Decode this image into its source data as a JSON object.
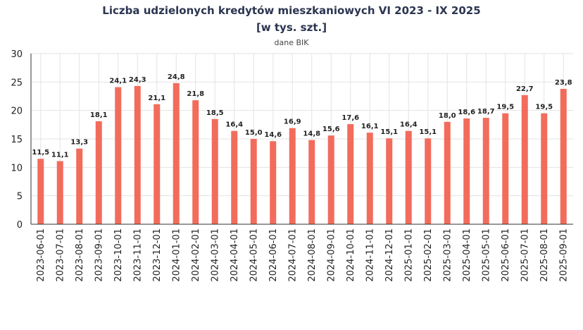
{
  "chart_title_line1": "Liczba udzielonych kredytów mieszkaniowych VI 2023 - IX 2025",
  "chart_title_line2": "[w tys. szt.]",
  "chart_subtitle": "dane BIK",
  "colors": {
    "bar": "#f26c5c",
    "grid": "#e3e3e3",
    "axis": "#333333",
    "title": "#2b3550"
  },
  "chart_data": {
    "type": "bar",
    "categories": [
      "2023-06-01",
      "2023-07-01",
      "2023-08-01",
      "2023-09-01",
      "2023-10-01",
      "2023-11-01",
      "2023-12-01",
      "2024-01-01",
      "2024-02-01",
      "2024-03-01",
      "2024-04-01",
      "2024-05-01",
      "2024-06-01",
      "2024-07-01",
      "2024-08-01",
      "2024-09-01",
      "2024-10-01",
      "2024-11-01",
      "2024-12-01",
      "2025-01-01",
      "2025-02-01",
      "2025-03-01",
      "2025-04-01",
      "2025-05-01",
      "2025-06-01",
      "2025-07-01",
      "2025-08-01",
      "2025-09-01"
    ],
    "values": [
      11.5,
      11.1,
      13.3,
      18.1,
      24.1,
      24.3,
      21.1,
      24.8,
      21.8,
      18.5,
      16.4,
      15.0,
      14.6,
      16.9,
      14.8,
      15.6,
      17.6,
      16.1,
      15.1,
      16.4,
      15.1,
      18.0,
      18.6,
      18.7,
      19.5,
      22.7,
      19.5,
      23.8
    ],
    "data_labels": [
      "11,5",
      "11,1",
      "13,3",
      "18,1",
      "24,1",
      "24,3",
      "21,1",
      "24,8",
      "21,8",
      "18,5",
      "16,4",
      "15,0",
      "14,6",
      "16,9",
      "14,8",
      "15,6",
      "17,6",
      "16,1",
      "15,1",
      "16,4",
      "15,1",
      "18,0",
      "18,6",
      "18,7",
      "19,5",
      "22,7",
      "19,5",
      "23,8"
    ],
    "yticks": [
      0,
      5,
      10,
      15,
      20,
      25,
      30
    ],
    "ylim": [
      0,
      30
    ],
    "grid": true,
    "legend": "none"
  }
}
